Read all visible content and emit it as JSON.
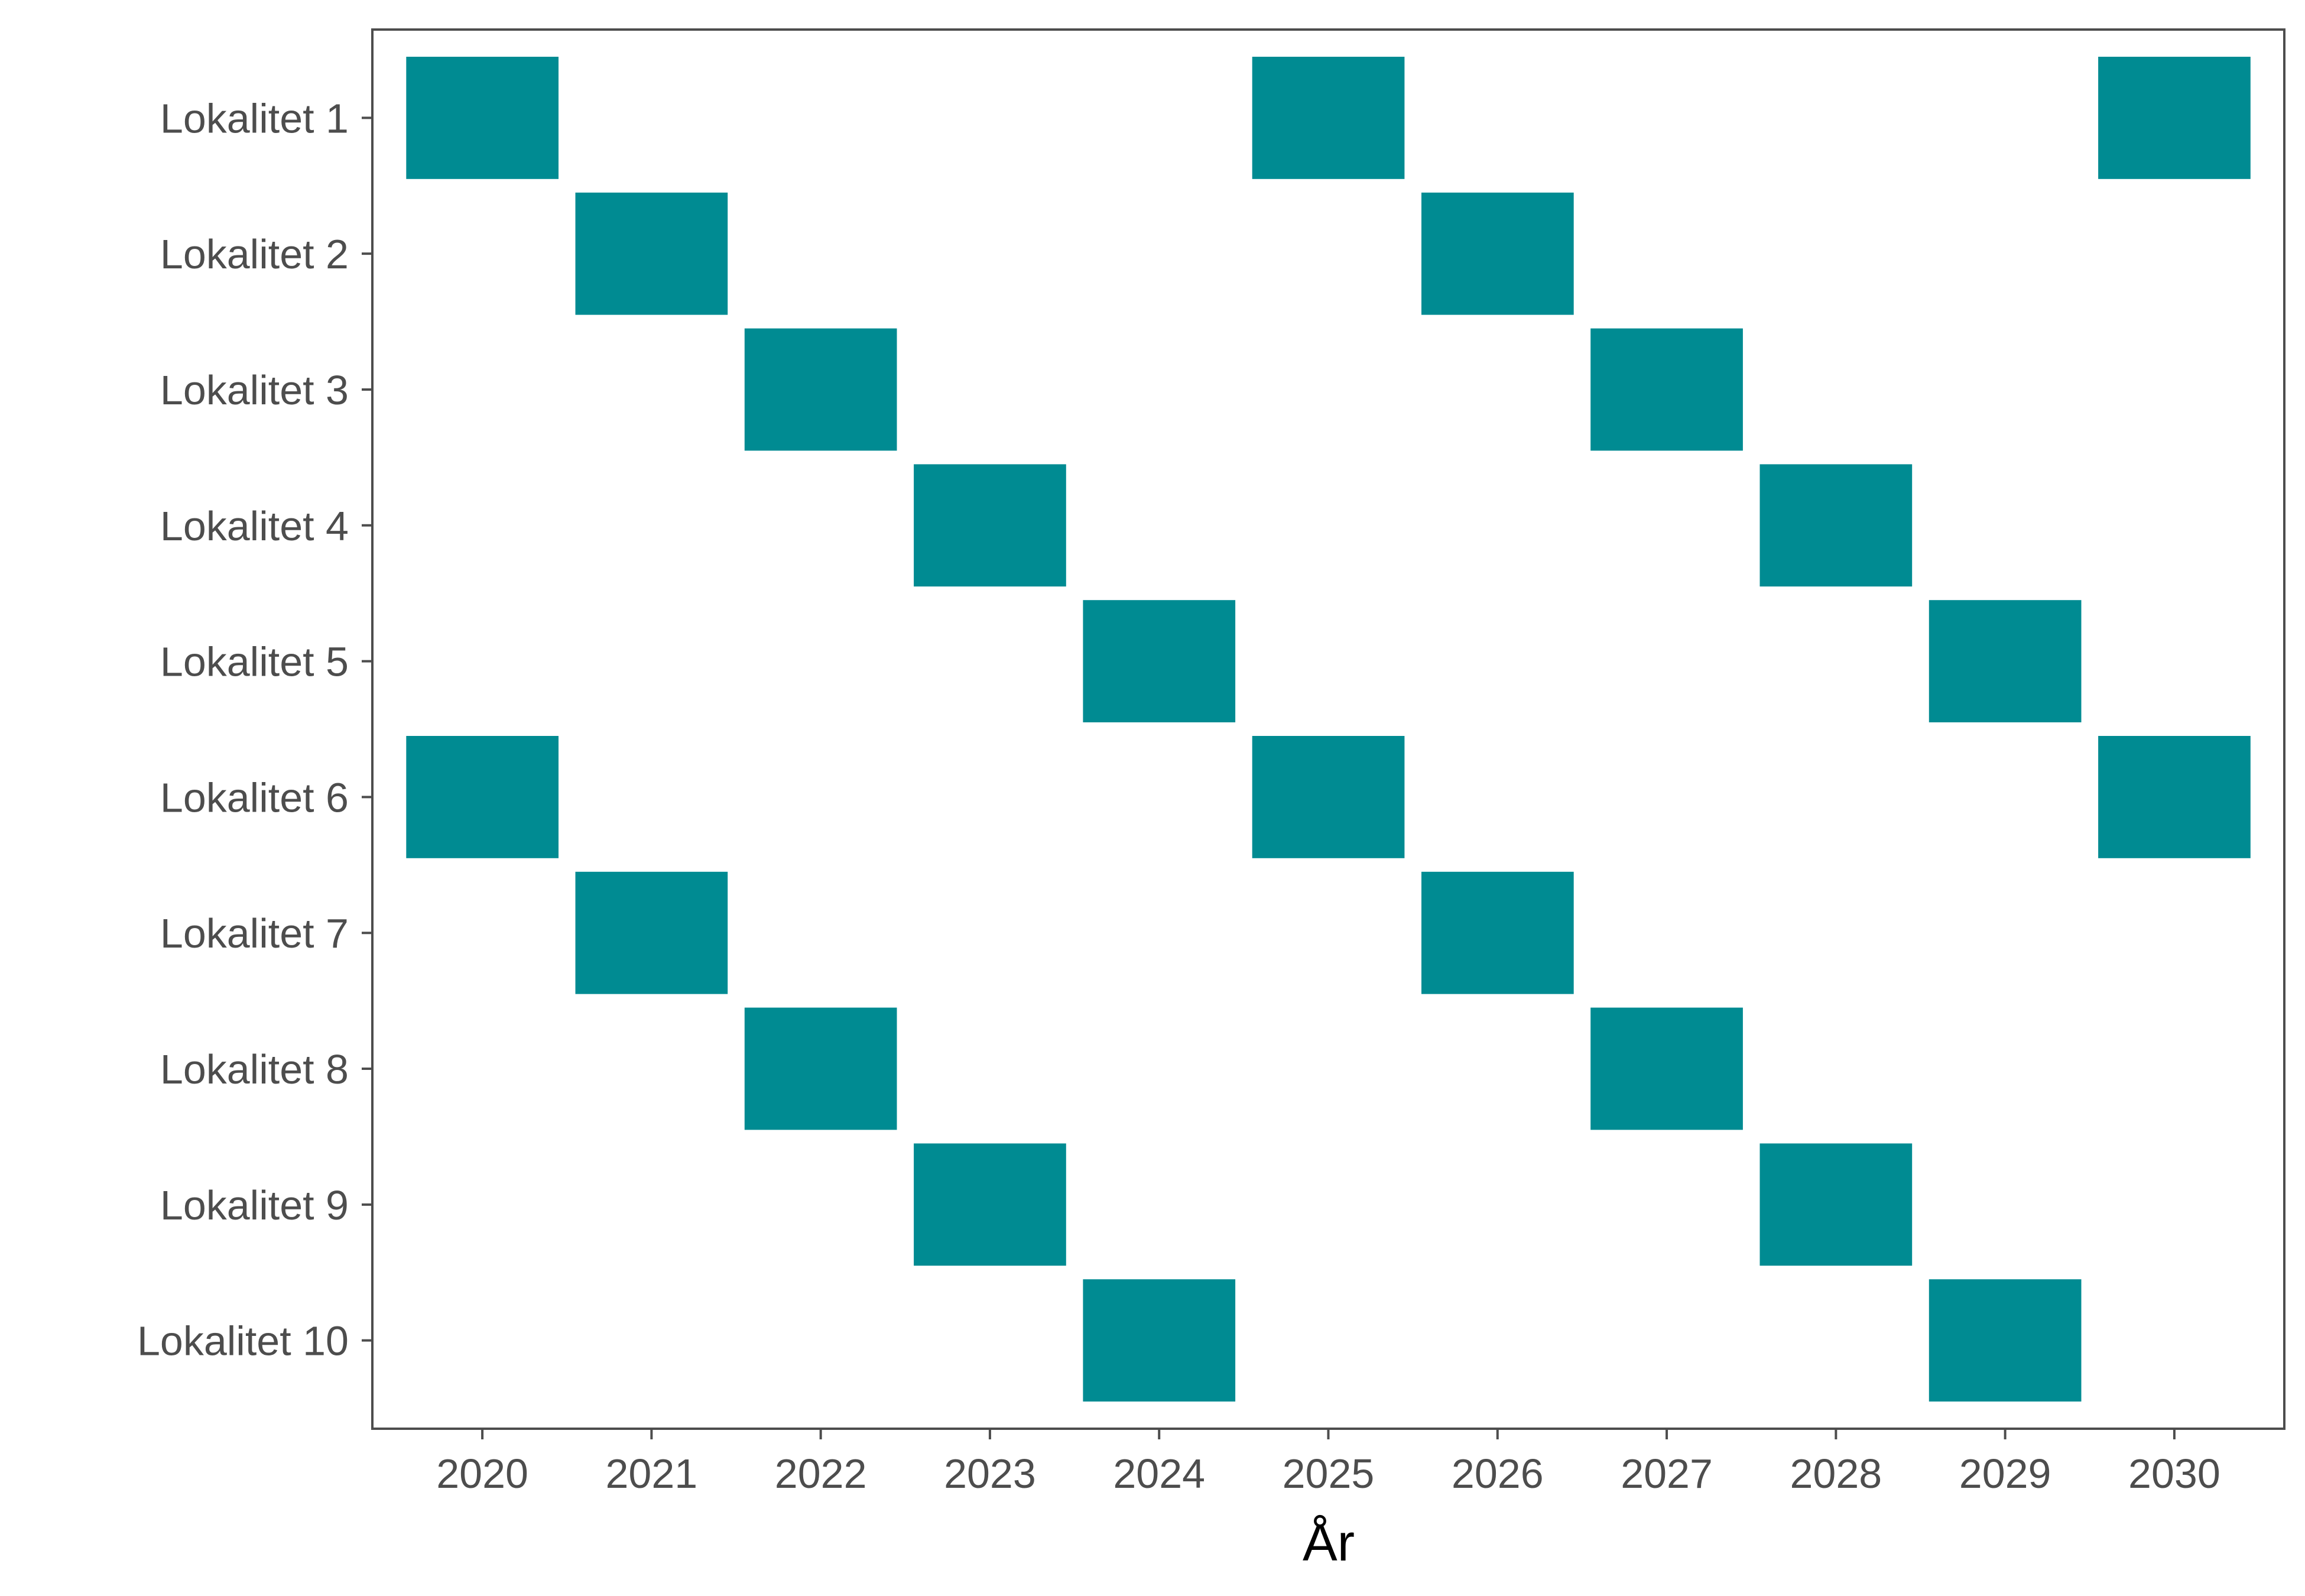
{
  "chart_data": {
    "type": "heatmap",
    "title": "",
    "xlabel": "År",
    "ylabel": "",
    "x": [
      "2020",
      "2021",
      "2022",
      "2023",
      "2024",
      "2025",
      "2026",
      "2027",
      "2028",
      "2029",
      "2030"
    ],
    "y": [
      "Lokalitet 1",
      "Lokalitet 2",
      "Lokalitet 3",
      "Lokalitet 4",
      "Lokalitet 5",
      "Lokalitet 6",
      "Lokalitet 7",
      "Lokalitet 8",
      "Lokalitet 9",
      "Lokalitet 10"
    ],
    "cells": [
      {
        "site": "Lokalitet 1",
        "years": [
          "2020",
          "2025",
          "2030"
        ]
      },
      {
        "site": "Lokalitet 2",
        "years": [
          "2021",
          "2026"
        ]
      },
      {
        "site": "Lokalitet 3",
        "years": [
          "2022",
          "2027"
        ]
      },
      {
        "site": "Lokalitet 4",
        "years": [
          "2023",
          "2028"
        ]
      },
      {
        "site": "Lokalitet 5",
        "years": [
          "2024",
          "2029"
        ]
      },
      {
        "site": "Lokalitet 6",
        "years": [
          "2020",
          "2025",
          "2030"
        ]
      },
      {
        "site": "Lokalitet 7",
        "years": [
          "2021",
          "2026"
        ]
      },
      {
        "site": "Lokalitet 8",
        "years": [
          "2022",
          "2027"
        ]
      },
      {
        "site": "Lokalitet 9",
        "years": [
          "2023",
          "2028"
        ]
      },
      {
        "site": "Lokalitet 10",
        "years": [
          "2024",
          "2029"
        ]
      }
    ],
    "fill_color": "#008b92",
    "grid": false,
    "legend": "none"
  }
}
